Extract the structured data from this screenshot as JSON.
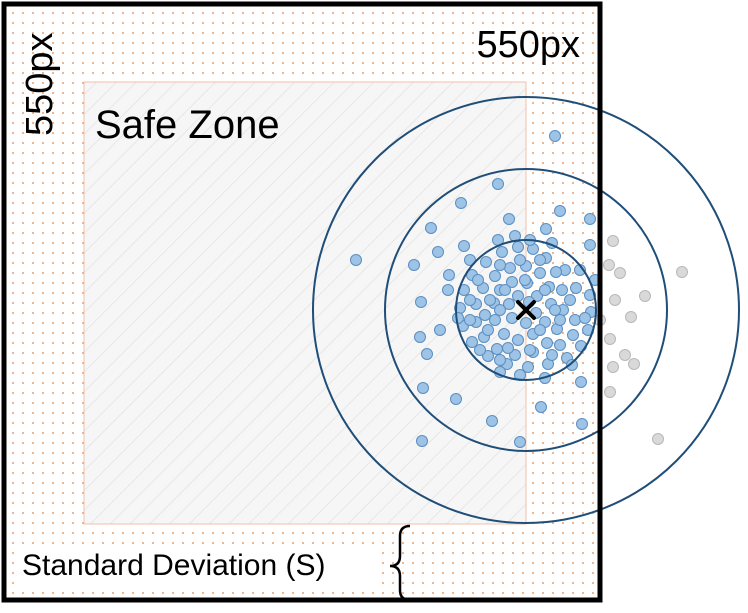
{
  "labels": {
    "width_label": "550px",
    "height_label": "550px",
    "safe_zone": "Safe Zone",
    "std_dev": "Standard Deviation (S)"
  },
  "colors": {
    "frame": "#000000",
    "dot_pattern": "#e8a070",
    "safe_zone_fill": "#f6f6f6",
    "safe_zone_stripe": "#e2e2e2",
    "safe_zone_border": "#f0c0a8",
    "ring": "#1f4e79",
    "point_in": "#9dc3e6",
    "point_in_stroke": "#5b8ec0",
    "point_out": "#d9d9d9",
    "point_out_stroke": "#b8b8b8",
    "center_marker": "#000000"
  },
  "icons": {
    "center": "x-cross-icon",
    "std_dev_bracket": "curly-brace-icon"
  },
  "rings_sd_multiples": [
    1,
    2,
    3
  ],
  "points": {
    "inside_count": 120,
    "outside_count": 14
  }
}
